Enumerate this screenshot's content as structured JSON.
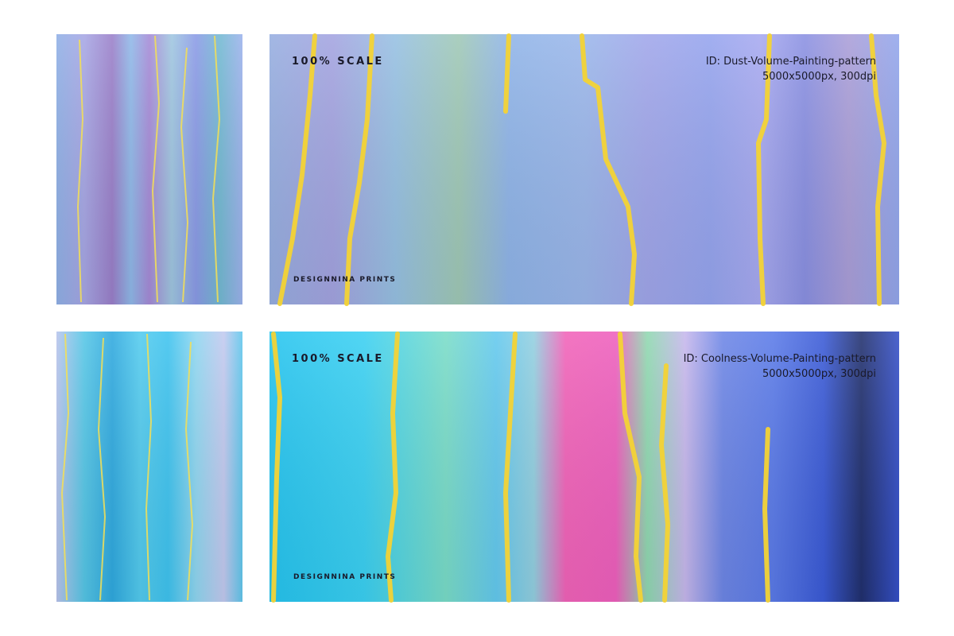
{
  "panels": [
    {
      "scale_label": "100% SCALE",
      "id": "ID: Dust-Volume-Painting-pattern",
      "resolution": "5000x5000px, 300dpi",
      "brand": "DESIGNNINA PRINTS"
    },
    {
      "scale_label": "100% SCALE",
      "id": "ID: Coolness-Volume-Painting-pattern",
      "resolution": "5000x5000px, 300dpi",
      "brand": "DESIGNNINA PRINTS"
    }
  ]
}
